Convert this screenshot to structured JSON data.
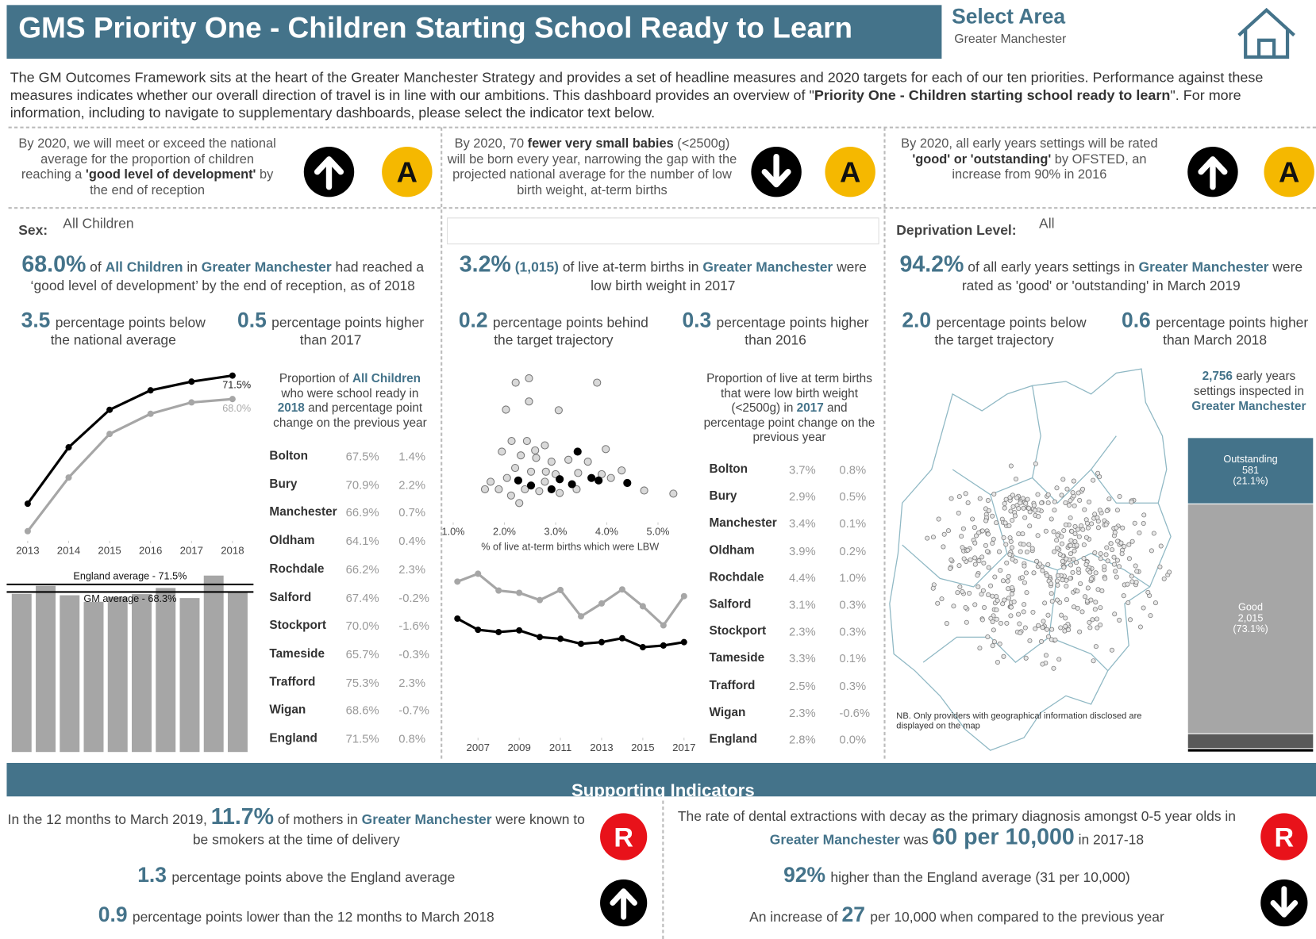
{
  "header": {
    "title": "GMS Priority One - Children Starting School Ready to Learn",
    "select_area": "Select Area",
    "area": "Greater Manchester"
  },
  "intro": [
    {
      "text": "The GM Outcomes Framework sits at the heart of the Greater Manchester Strategy and provides a set of headline measures and 2020 targets for each of our ten priorities. Performance against these measures indicates whether our overall direction of travel is in line with our ambitions. This dashboard provides an overview of \""
    },
    {
      "text": "Priority One - Children starting school ready to learn",
      "style": "bold"
    },
    {
      "text": "\". For more information, including to navigate to supplementary dashboards, please select the indicator text below."
    }
  ],
  "targets": [
    {
      "text": [
        {
          "text": "By 2020, we will meet or exceed the national average for the proportion of children reaching a "
        },
        {
          "text": "'good level of development'",
          "style": "bold"
        },
        {
          "text": " by the end of reception"
        }
      ],
      "direction": "up",
      "rating": "A",
      "rating_color": "#f5b800"
    },
    {
      "text": [
        {
          "text": "By 2020, 70 "
        },
        {
          "text": "fewer very small babies",
          "style": "bold"
        },
        {
          "text": " (<2500g) will be born every year, narrowing the gap with the projected national average for the number of low birth weight, at-term births"
        }
      ],
      "direction": "down",
      "rating": "A",
      "rating_color": "#f5b800"
    },
    {
      "text": [
        {
          "text": "By 2020, all early years settings will be rated "
        },
        {
          "text": "'good' or 'outstanding'",
          "style": "bold"
        },
        {
          "text": " by OFSTED, an increase from 90% in 2016"
        }
      ],
      "direction": "up",
      "rating": "A",
      "rating_color": "#f5b800"
    }
  ],
  "panels": [
    {
      "filter": {
        "label": "Sex:",
        "value": "All Children"
      },
      "headline": [
        {
          "text": "68.0%",
          "style": "big"
        },
        {
          "text": " of "
        },
        {
          "text": "All Children",
          "style": "highlight"
        },
        {
          "text": " in "
        },
        {
          "text": "Greater Manchester",
          "style": "highlight"
        },
        {
          "text": " had reached a ‘good level of development’ by the end of reception, as of 2018"
        }
      ],
      "stats": [
        {
          "value": "3.5",
          "text": "percentage points below the national average"
        },
        {
          "value": "0.5",
          "text": "percentage points higher than 2017"
        }
      ],
      "trend": {
        "type": "line",
        "x": [
          2013,
          2014,
          2015,
          2016,
          2017,
          2018
        ],
        "xlim": [
          2013,
          2018
        ],
        "xticks": [
          2013,
          2014,
          2015,
          2016,
          2017,
          2018
        ],
        "ylim": [
          47,
          73
        ],
        "series": [
          {
            "color": "#000000",
            "values": [
              52.4,
              60.8,
              66.4,
              69.3,
              70.6,
              71.5
            ],
            "value_labels": [
              null,
              null,
              null,
              null,
              null,
              "71.5%"
            ]
          },
          {
            "color": "#a6a6a6",
            "values": [
              48.3,
              56.3,
              62.8,
              65.8,
              67.5,
              68.0
            ],
            "value_labels": [
              null,
              null,
              null,
              null,
              null,
              "68.0%"
            ]
          }
        ]
      },
      "bars": {
        "type": "bar",
        "values": [
          67.5,
          70.9,
          66.9,
          64.1,
          66.2,
          67.4,
          70.0,
          65.7,
          75.3,
          68.6
        ],
        "color": "#a6a6a6",
        "ylim": [
          0,
          78
        ],
        "reference_lines": [
          {
            "label": "England average - 71.5%",
            "value": 71.5
          },
          {
            "label": "GM average - 68.3%",
            "value": 68.3
          }
        ]
      },
      "table": {
        "caption": [
          {
            "text": "Proportion of "
          },
          {
            "text": "All Children",
            "style": "highlight"
          },
          {
            "text": " who were school ready in "
          },
          {
            "text": "2018",
            "style": "highlight"
          },
          {
            "text": " and percentage point change on the previous year"
          }
        ],
        "rows": [
          [
            "Bolton",
            "67.5%",
            "1.4%"
          ],
          [
            "Bury",
            "70.9%",
            "2.2%"
          ],
          [
            "Manchester",
            "66.9%",
            "0.7%"
          ],
          [
            "Oldham",
            "64.1%",
            "0.4%"
          ],
          [
            "Rochdale",
            "66.2%",
            "2.3%"
          ],
          [
            "Salford",
            "67.4%",
            "-0.2%"
          ],
          [
            "Stockport",
            "70.0%",
            "-1.6%"
          ],
          [
            "Tameside",
            "65.7%",
            "-0.3%"
          ],
          [
            "Trafford",
            "75.3%",
            "2.3%"
          ],
          [
            "Wigan",
            "68.6%",
            "-0.7%"
          ],
          [
            "England",
            "71.5%",
            "0.8%"
          ]
        ]
      }
    },
    {
      "headline": [
        {
          "text": "3.2%",
          "style": "big"
        },
        {
          "text": " (1,015)",
          "style": "highlight"
        },
        {
          "text": " of live at-term births in "
        },
        {
          "text": "Greater Manchester",
          "style": "highlight"
        },
        {
          "text": " were low birth weight in 2017"
        }
      ],
      "stats": [
        {
          "value": "0.2",
          "text": "percentage points behind the target trajectory"
        },
        {
          "value": "0.3",
          "text": "percentage points higher than 2016"
        }
      ],
      "scatter": {
        "type": "scatter",
        "xlim": [
          1,
          5.5
        ],
        "xticks": [
          {
            "value": 1,
            "label": "1.0%"
          },
          {
            "value": 2,
            "label": "2.0%"
          },
          {
            "value": 3,
            "label": "3.0%"
          },
          {
            "value": 4,
            "label": "4.0%"
          },
          {
            "value": 5,
            "label": "5.0%"
          }
        ],
        "xlabel": "% of live at-term births which were LBW",
        "ylim": [
          0,
          11.5
        ],
        "series": [
          {
            "color": "#d9d9d9",
            "x": [
              2.48,
              2.22,
              3.81,
              2.03,
              2.48,
              3.06,
              2.14,
              2.44,
              2.79,
              3.98,
              1.95,
              2.32,
              2.62,
              2.92,
              3.25,
              3.63,
              4.29,
              2.21,
              2.52,
              2.81,
              3.44,
              3.9,
              1.62,
              1.89,
              2.13,
              2.4,
              2.68,
              3.08,
              3.41,
              4.08,
              4.73,
              5.3,
              2.05,
              2.29,
              2.79,
              3.0,
              1.73,
              2.6
            ],
            "y": [
              10.75,
              10.4,
              10.4,
              8.25,
              8.9,
              8.2,
              5.75,
              5.75,
              5.4,
              5.1,
              4.9,
              4.6,
              4.4,
              4.1,
              4.25,
              4.1,
              3.4,
              3.6,
              3.3,
              3.3,
              3.2,
              3.1,
              1.9,
              1.9,
              1.4,
              1.9,
              1.75,
              1.6,
              1.9,
              2.8,
              1.8,
              1.55,
              2.8,
              0.8,
              2.5,
              3.1,
              2.5,
              5.0
            ]
          },
          {
            "color": "#000000",
            "x": [
              3.43,
              2.27,
              2.52,
              2.92,
              3.08,
              3.32,
              3.7,
              3.84,
              4.4
            ],
            "y": [
              4.9,
              2.6,
              2.2,
              1.9,
              2.7,
              2.3,
              2.8,
              2.6,
              2.4
            ]
          }
        ]
      },
      "trend": {
        "type": "line",
        "x": [
          2006,
          2007,
          2008,
          2009,
          2010,
          2011,
          2012,
          2013,
          2014,
          2015,
          2016,
          2017
        ],
        "xlim": [
          2006,
          2017
        ],
        "xticks": [
          2007,
          2009,
          2011,
          2013,
          2015,
          2017
        ],
        "ylim": [
          2,
          10
        ],
        "series": [
          {
            "color": "#a6a6a6",
            "values": [
              8.6,
              9.3,
              7.8,
              7.6,
              6.95,
              7.85,
              5.5,
              6.65,
              7.9,
              6.4,
              4.7,
              7.3
            ]
          },
          {
            "color": "#000000",
            "values": [
              5.3,
              4.3,
              4.1,
              4.25,
              3.65,
              3.5,
              3.05,
              3.2,
              3.55,
              2.75,
              2.9,
              3.2
            ]
          }
        ]
      },
      "table": {
        "caption": [
          {
            "text": "Proportion of live at term births that were low birth weight (<2500g) in "
          },
          {
            "text": "2017",
            "style": "highlight"
          },
          {
            "text": " and percentage point change on the previous year"
          }
        ],
        "rows": [
          [
            "Bolton",
            "3.7%",
            "0.8%"
          ],
          [
            "Bury",
            "2.9%",
            "0.5%"
          ],
          [
            "Manchester",
            "3.4%",
            "0.1%"
          ],
          [
            "Oldham",
            "3.9%",
            "0.2%"
          ],
          [
            "Rochdale",
            "4.4%",
            "1.0%"
          ],
          [
            "Salford",
            "3.1%",
            "0.3%"
          ],
          [
            "Stockport",
            "2.3%",
            "0.3%"
          ],
          [
            "Tameside",
            "3.3%",
            "0.1%"
          ],
          [
            "Trafford",
            "2.5%",
            "0.3%"
          ],
          [
            "Wigan",
            "2.3%",
            "-0.6%"
          ],
          [
            "England",
            "2.8%",
            "0.0%"
          ]
        ]
      }
    },
    {
      "filter": {
        "label": "Deprivation Level:",
        "value": "All"
      },
      "headline": [
        {
          "text": "94.2%",
          "style": "big"
        },
        {
          "text": " of all early years settings in "
        },
        {
          "text": "Greater Manchester",
          "style": "highlight"
        },
        {
          "text": " were rated as 'good' or 'outstanding' in March 2019"
        }
      ],
      "stats": [
        {
          "value": "2.0",
          "text": "percentage points  below the target trajectory"
        },
        {
          "value": "0.6",
          "text": "percentage points higher than March 2018"
        }
      ],
      "map_note": "NB. Only providers with geographical information disclosed are displayed on the map",
      "stack": {
        "type": "stacked_bar",
        "caption": [
          {
            "text": "2,756",
            "style": "highlight"
          },
          {
            "text": " early years settings inspected in "
          },
          {
            "text": "Greater Manchester",
            "style": "highlight"
          }
        ],
        "segments": [
          {
            "name": "Outstanding",
            "value": 581,
            "value_label": "581",
            "share_label": "(21.1%)",
            "color": "#44738a"
          },
          {
            "name": "Good",
            "value": 2015,
            "value_label": "2,015",
            "share_label": "(73.1%)",
            "color": "#a6a6a6"
          },
          {
            "value": 130,
            "color": "#595959"
          },
          {
            "value": 30,
            "color": "#000000"
          }
        ]
      }
    }
  ],
  "supporting": {
    "title": "Supporting Indicators",
    "items": [
      {
        "headline": [
          {
            "text": "In the 12 months to March 2019, "
          },
          {
            "text": "11.7%",
            "style": "big"
          },
          {
            "text": " of mothers in "
          },
          {
            "text": "Greater Manchester",
            "style": "highlight"
          },
          {
            "text": "  were known to be smokers at the time of delivery"
          }
        ],
        "rating": "R",
        "rating_color": "#e8121a",
        "direction": "up",
        "stats": [
          {
            "value": "1.3",
            "text": "percentage points above the England average"
          },
          {
            "value": "0.9",
            "text": "percentage points lower than the 12 months to March 2018"
          }
        ]
      },
      {
        "headline": [
          {
            "text": "The rate of dental extractions with decay as the primary diagnosis amongst 0-5 year olds in "
          },
          {
            "text": "Greater Manchester",
            "style": "highlight"
          },
          {
            "text": " was "
          },
          {
            "text": "60 per 10,000",
            "style": "big"
          },
          {
            "text": " in 2017-18"
          }
        ],
        "rating": "R",
        "rating_color": "#e8121a",
        "direction": "down",
        "stats": [
          {
            "value": "92%",
            "text": "higher than the England average (31 per 10,000)"
          },
          {
            "prefix": "An increase of",
            "value": "27",
            "text": "per 10,000 when compared to the previous year"
          }
        ]
      }
    ]
  }
}
